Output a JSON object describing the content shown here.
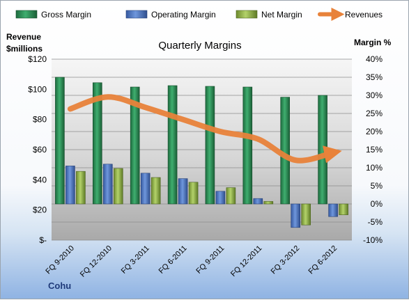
{
  "chart_data": {
    "type": "bar",
    "title": "Quarterly Margins",
    "company": "Cohu",
    "categories": [
      "FQ 9-2010",
      "FQ 12-2010",
      "FQ 3-2011",
      "FQ 6-2011",
      "FQ 9-2011",
      "FQ 12-2011",
      "FQ 3-2012",
      "FQ 6-2012"
    ],
    "y_left": {
      "label_line1": "Revenue",
      "label_line2": "$millions",
      "min": 0,
      "max": 120,
      "step": 20,
      "ticks": [
        "$-",
        "$20",
        "$40",
        "$60",
        "$80",
        "$100",
        "$120"
      ]
    },
    "y_right": {
      "label": "Margin %",
      "min": -10,
      "max": 40,
      "step": 5,
      "ticks": [
        "-10%",
        "-5%",
        "0%",
        "5%",
        "10%",
        "15%",
        "20%",
        "25%",
        "30%",
        "35%",
        "40%"
      ]
    },
    "series": [
      {
        "name": "Gross Margin",
        "type": "bar",
        "axis": "right",
        "color": "#2e8b57",
        "values": [
          35.0,
          33.5,
          32.3,
          32.7,
          32.5,
          32.3,
          29.5,
          30.0
        ]
      },
      {
        "name": "Operating Margin",
        "type": "bar",
        "axis": "right",
        "color": "#4f7ac7",
        "values": [
          10.5,
          11.0,
          8.5,
          7.0,
          3.5,
          1.5,
          -6.5,
          -3.5
        ]
      },
      {
        "name": "Net Margin",
        "type": "bar",
        "axis": "right",
        "color": "#8fb04a",
        "values": [
          9.0,
          9.8,
          7.3,
          6.0,
          4.5,
          0.7,
          -5.8,
          -3.0
        ]
      },
      {
        "name": "Revenues",
        "type": "line",
        "axis": "left",
        "color": "#e8823a",
        "values": [
          87,
          95,
          88,
          80,
          72,
          67,
          53,
          58
        ]
      }
    ],
    "legend_position": "top",
    "grid": true
  }
}
